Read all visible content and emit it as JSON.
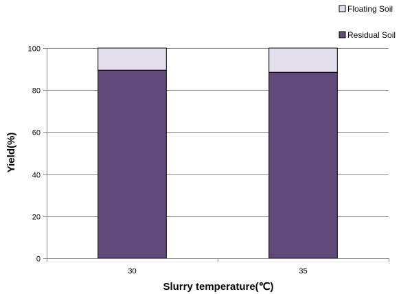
{
  "chart_data": {
    "type": "bar",
    "stacked": true,
    "categories": [
      "30",
      "35"
    ],
    "series": [
      {
        "name": "Residual Soil",
        "values": [
          89.5,
          88.5
        ],
        "color": "#604A7B"
      },
      {
        "name": "Floating Soil",
        "values": [
          10.5,
          11.5
        ],
        "color": "#E4DFEC"
      }
    ],
    "title": "",
    "xlabel": "Slurry temperature(℃)",
    "ylabel": "Yield(%)",
    "ylim": [
      0,
      100
    ],
    "yticks": [
      "0",
      "20",
      "40",
      "60",
      "80",
      "100"
    ],
    "grid": true,
    "legend": "top-right"
  }
}
